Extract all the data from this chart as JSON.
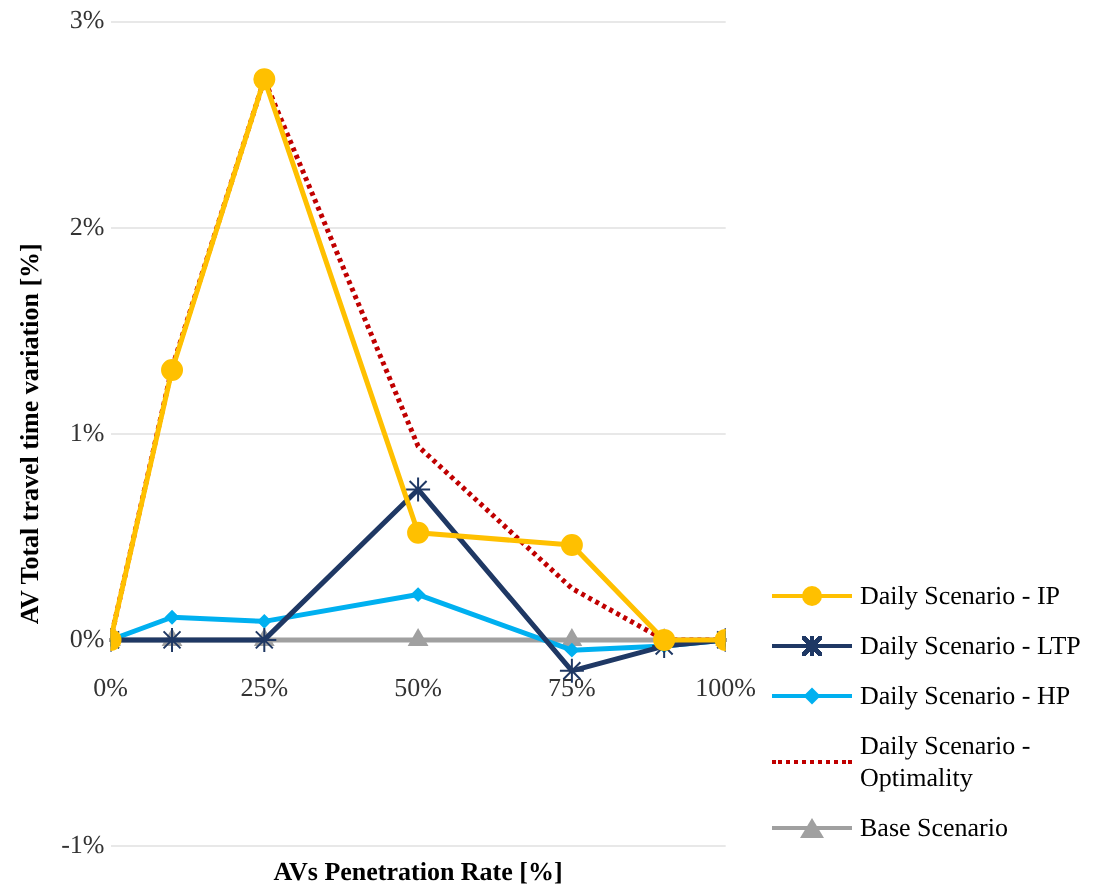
{
  "chart_data": {
    "type": "line",
    "xlabel": "AVs Penetration Rate [%]",
    "ylabel": "AV Total travel time variation [%]",
    "x": [
      0,
      10,
      25,
      50,
      75,
      90,
      100
    ],
    "xlim": [
      0,
      100
    ],
    "xticks": [
      {
        "value": 0,
        "label": "0%"
      },
      {
        "value": 25,
        "label": "25%"
      },
      {
        "value": 50,
        "label": "50%"
      },
      {
        "value": 75,
        "label": "75%"
      },
      {
        "value": 100,
        "label": "100%"
      }
    ],
    "ylim": [
      -1,
      3
    ],
    "yticks": [
      {
        "value": -1,
        "label": "-1%"
      },
      {
        "value": 0,
        "label": "0%"
      },
      {
        "value": 1,
        "label": "1%"
      },
      {
        "value": 2,
        "label": "2%"
      },
      {
        "value": 3,
        "label": "3%"
      }
    ],
    "grid": "y",
    "legend": "right",
    "series": [
      {
        "name": "Daily Scenario - IP",
        "color": "#ffc000",
        "marker": "circle",
        "values": [
          0,
          1.31,
          2.72,
          0.52,
          0.46,
          0,
          0
        ]
      },
      {
        "name": "Daily Scenario - LTP",
        "color": "#1f3864",
        "marker": "cross",
        "values": [
          0,
          0,
          0,
          0.73,
          -0.15,
          -0.03,
          0
        ]
      },
      {
        "name": "Daily Scenario - HP",
        "color": "#00b0f0",
        "marker": "diamond",
        "values": [
          0,
          0.11,
          0.09,
          0.22,
          -0.05,
          -0.03,
          0
        ]
      },
      {
        "name": "Daily Scenario - Optimality",
        "color": "#c00000",
        "marker": "none",
        "line_style": "dotted",
        "values": [
          0,
          1.32,
          2.72,
          0.94,
          0.25,
          0,
          0
        ]
      },
      {
        "name": "Base Scenario",
        "color": "#a0a0a0",
        "marker": "triangle",
        "values": [
          0,
          0,
          0,
          0,
          0,
          0,
          0
        ]
      }
    ]
  }
}
